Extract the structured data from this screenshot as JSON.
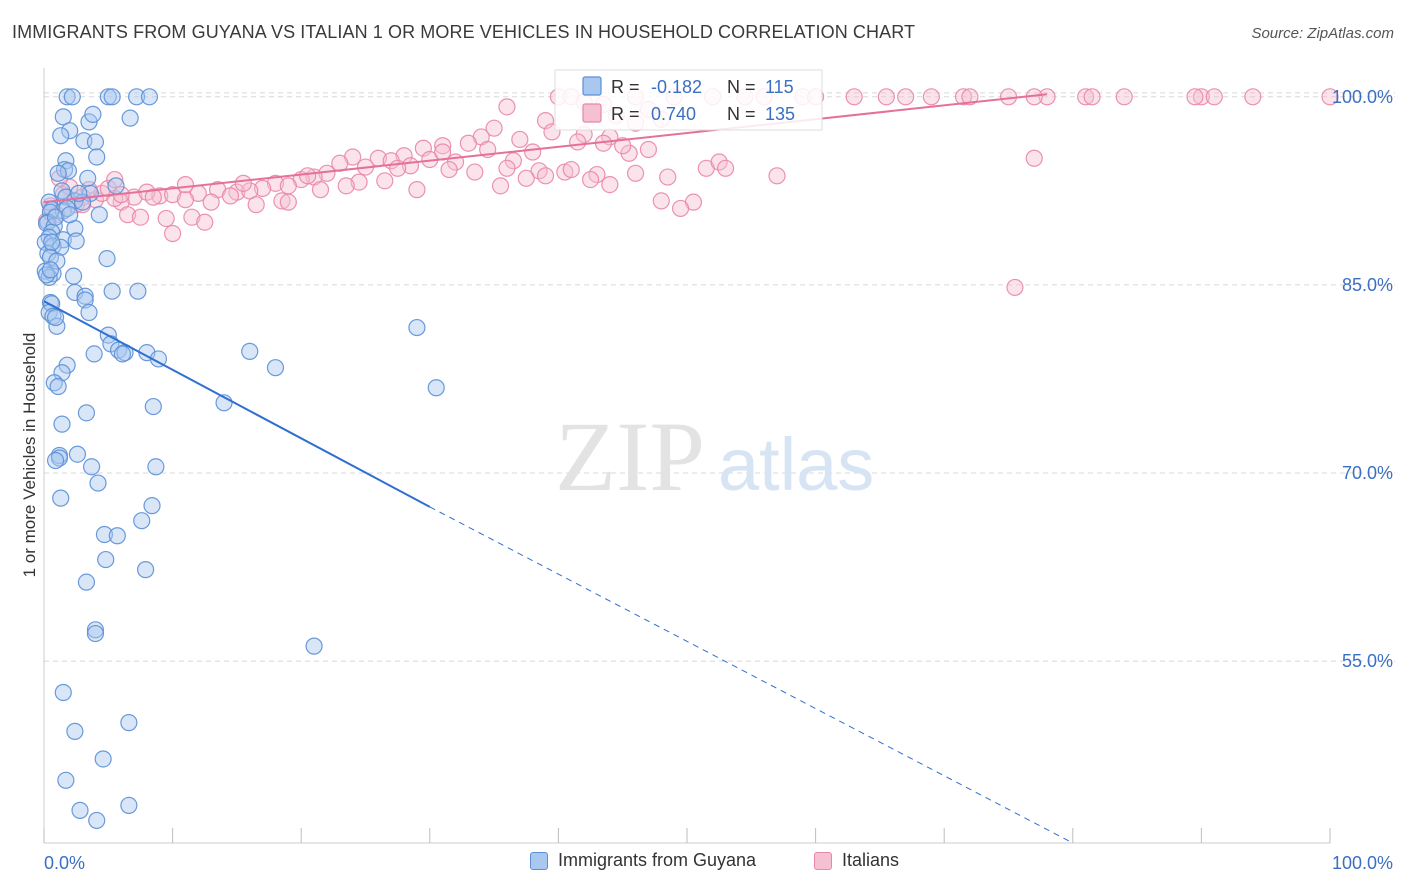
{
  "title": "IMMIGRANTS FROM GUYANA VS ITALIAN 1 OR MORE VEHICLES IN HOUSEHOLD CORRELATION CHART",
  "source": "Source: ZipAtlas.com",
  "watermark": {
    "zip": "ZIP",
    "atlas": "atlas"
  },
  "colors": {
    "blue": "#5b8fd6",
    "blue_fill": "#a9c8ef",
    "blue_line": "#2f6fd1",
    "pink": "#ea86a6",
    "pink_fill": "#f5c0d2",
    "pink_line": "#e5709a",
    "tick_text": "#3b6fc4",
    "grid": "#d8d8d8"
  },
  "legend_stats": [
    {
      "r_label": "R =",
      "r_value": "-0.182",
      "n_label": "N =",
      "n_value": "115"
    },
    {
      "r_label": "R =",
      "r_value": "0.740",
      "n_label": "N =",
      "n_value": "135"
    }
  ],
  "chart_data": {
    "type": "scatter",
    "title": "IMMIGRANTS FROM GUYANA VS ITALIAN 1 OR MORE VEHICLES IN HOUSEHOLD CORRELATION CHART",
    "xlabel": "",
    "ylabel": "1 or more Vehicles in Household",
    "xlim": [
      0,
      100
    ],
    "ylim": [
      40.5,
      101.5
    ],
    "x_tick_labels": [
      "0.0%",
      "100.0%"
    ],
    "y_ticks": [
      55,
      70,
      85,
      100
    ],
    "y_tick_labels": [
      "55.0%",
      "70.0%",
      "85.0%",
      "100.0%"
    ],
    "grid": true,
    "legend_position": "bottom",
    "series": [
      {
        "name": "Immigrants from Guyana",
        "color": "#5b8fd6",
        "trend": {
          "x": [
            0,
            30
          ],
          "y": [
            83.7,
            67.3
          ],
          "dashed_to": {
            "x": 80,
            "y": 40.5
          }
        },
        "points": [
          [
            1.8,
            100
          ],
          [
            2.2,
            100
          ],
          [
            5.0,
            100
          ],
          [
            5.3,
            100
          ],
          [
            7.2,
            100
          ],
          [
            8.2,
            100
          ],
          [
            1.5,
            98.4
          ],
          [
            3.5,
            98.0
          ],
          [
            3.8,
            98.6
          ],
          [
            6.7,
            98.3
          ],
          [
            2.0,
            97.3
          ],
          [
            1.3,
            96.9
          ],
          [
            3.1,
            96.5
          ],
          [
            4.0,
            96.4
          ],
          [
            4.1,
            95.2
          ],
          [
            1.7,
            94.9
          ],
          [
            1.6,
            94.2
          ],
          [
            1.9,
            94.1
          ],
          [
            1.1,
            93.9
          ],
          [
            3.4,
            93.5
          ],
          [
            5.6,
            92.9
          ],
          [
            1.4,
            92.5
          ],
          [
            3.6,
            92.3
          ],
          [
            1.7,
            92.0
          ],
          [
            2.4,
            91.7
          ],
          [
            0.4,
            91.6
          ],
          [
            0.6,
            91.0
          ],
          [
            1.5,
            90.9
          ],
          [
            4.3,
            90.6
          ],
          [
            0.5,
            90.8
          ],
          [
            0.3,
            90.0
          ],
          [
            0.2,
            89.9
          ],
          [
            0.8,
            89.7
          ],
          [
            2.4,
            89.5
          ],
          [
            0.6,
            89.2
          ],
          [
            0.4,
            88.8
          ],
          [
            1.5,
            88.6
          ],
          [
            0.1,
            88.4
          ],
          [
            0.7,
            88.1
          ],
          [
            1.3,
            88.0
          ],
          [
            0.3,
            87.5
          ],
          [
            0.5,
            87.2
          ],
          [
            4.9,
            87.1
          ],
          [
            0.1,
            86.1
          ],
          [
            0.7,
            85.9
          ],
          [
            2.3,
            85.7
          ],
          [
            0.4,
            85.6
          ],
          [
            2.4,
            84.4
          ],
          [
            3.2,
            84.1
          ],
          [
            5.3,
            84.5
          ],
          [
            7.3,
            84.5
          ],
          [
            0.5,
            83.6
          ],
          [
            0.6,
            83.5
          ],
          [
            3.2,
            83.8
          ],
          [
            0.4,
            82.8
          ],
          [
            0.7,
            82.5
          ],
          [
            3.5,
            82.8
          ],
          [
            1.0,
            81.7
          ],
          [
            5.0,
            81.0
          ],
          [
            29.0,
            81.6
          ],
          [
            5.2,
            80.3
          ],
          [
            5.8,
            79.8
          ],
          [
            6.3,
            79.6
          ],
          [
            8.0,
            79.6
          ],
          [
            3.9,
            79.5
          ],
          [
            6.1,
            79.5
          ],
          [
            16.0,
            79.7
          ],
          [
            8.9,
            79.1
          ],
          [
            18.0,
            78.4
          ],
          [
            1.8,
            78.6
          ],
          [
            1.4,
            78.0
          ],
          [
            0.8,
            77.2
          ],
          [
            1.1,
            76.9
          ],
          [
            30.5,
            76.8
          ],
          [
            14.0,
            75.6
          ],
          [
            8.5,
            75.3
          ],
          [
            3.3,
            74.8
          ],
          [
            1.4,
            73.9
          ],
          [
            1.2,
            71.4
          ],
          [
            2.6,
            71.5
          ],
          [
            1.2,
            71.2
          ],
          [
            0.9,
            71.0
          ],
          [
            3.7,
            70.5
          ],
          [
            8.7,
            70.5
          ],
          [
            4.2,
            69.2
          ],
          [
            1.3,
            68.0
          ],
          [
            8.4,
            67.4
          ],
          [
            7.6,
            66.2
          ],
          [
            4.7,
            65.1
          ],
          [
            5.7,
            65.0
          ],
          [
            4.8,
            63.1
          ],
          [
            7.9,
            62.3
          ],
          [
            3.3,
            61.3
          ],
          [
            4.0,
            57.5
          ],
          [
            4.0,
            57.2
          ],
          [
            21.0,
            56.2
          ],
          [
            1.5,
            52.5
          ],
          [
            2.4,
            49.4
          ],
          [
            6.6,
            50.1
          ],
          [
            4.6,
            47.2
          ],
          [
            1.7,
            45.5
          ],
          [
            2.8,
            43.1
          ],
          [
            6.6,
            43.5
          ],
          [
            4.1,
            42.3
          ],
          [
            3.0,
            91.6
          ],
          [
            2.7,
            92.3
          ],
          [
            1.8,
            91.1
          ],
          [
            0.9,
            90.4
          ],
          [
            1.0,
            86.9
          ],
          [
            0.2,
            85.8
          ],
          [
            0.6,
            88.4
          ],
          [
            2.0,
            90.6
          ],
          [
            0.9,
            82.4
          ],
          [
            2.5,
            88.5
          ],
          [
            0.5,
            86.2
          ]
        ]
      },
      {
        "name": "Italians",
        "color": "#ea86a6",
        "trend": {
          "x": [
            0,
            78
          ],
          "y": [
            91.6,
            100.2
          ]
        },
        "points": [
          [
            40,
            100
          ],
          [
            41,
            100
          ],
          [
            46,
            100
          ],
          [
            49,
            100
          ],
          [
            52,
            100
          ],
          [
            54.5,
            100
          ],
          [
            56,
            100
          ],
          [
            59,
            100
          ],
          [
            60,
            100
          ],
          [
            63,
            100
          ],
          [
            65.5,
            100
          ],
          [
            67,
            100
          ],
          [
            69,
            100
          ],
          [
            71.5,
            100
          ],
          [
            72,
            100
          ],
          [
            75,
            100
          ],
          [
            78,
            100
          ],
          [
            81,
            100
          ],
          [
            81.5,
            100
          ],
          [
            84,
            100
          ],
          [
            90,
            100
          ],
          [
            91,
            100
          ],
          [
            94,
            100
          ],
          [
            100,
            100
          ],
          [
            77,
            100
          ],
          [
            89.5,
            100
          ],
          [
            36,
            99.2
          ],
          [
            42,
            99.6
          ],
          [
            43.5,
            99.4
          ],
          [
            47,
            99.0
          ],
          [
            44.5,
            98.5
          ],
          [
            48,
            98.2
          ],
          [
            39,
            98.1
          ],
          [
            46,
            97.9
          ],
          [
            35,
            97.5
          ],
          [
            39.5,
            97.2
          ],
          [
            42,
            97.0
          ],
          [
            44,
            96.8
          ],
          [
            34,
            96.8
          ],
          [
            37,
            96.6
          ],
          [
            41.5,
            96.4
          ],
          [
            33,
            96.3
          ],
          [
            31,
            96.1
          ],
          [
            29.5,
            95.9
          ],
          [
            34.5,
            95.8
          ],
          [
            38,
            95.6
          ],
          [
            45.5,
            95.5
          ],
          [
            28,
            95.3
          ],
          [
            30,
            95.0
          ],
          [
            24,
            95.2
          ],
          [
            26,
            95.1
          ],
          [
            27,
            94.9
          ],
          [
            36.5,
            94.9
          ],
          [
            32,
            94.8
          ],
          [
            23,
            94.7
          ],
          [
            28.5,
            94.5
          ],
          [
            27.5,
            94.3
          ],
          [
            25,
            94.4
          ],
          [
            38.5,
            94.1
          ],
          [
            31.5,
            94.2
          ],
          [
            33.5,
            94.0
          ],
          [
            40.5,
            94.0
          ],
          [
            43,
            93.8
          ],
          [
            22,
            93.9
          ],
          [
            39,
            93.7
          ],
          [
            46,
            93.9
          ],
          [
            48.5,
            93.6
          ],
          [
            42.5,
            93.4
          ],
          [
            21,
            93.6
          ],
          [
            20,
            93.4
          ],
          [
            24.5,
            93.2
          ],
          [
            26.5,
            93.3
          ],
          [
            18,
            93.1
          ],
          [
            23.5,
            92.9
          ],
          [
            17,
            92.7
          ],
          [
            19,
            92.9
          ],
          [
            29,
            92.6
          ],
          [
            44,
            93.0
          ],
          [
            35.5,
            92.9
          ],
          [
            13.5,
            92.6
          ],
          [
            15,
            92.4
          ],
          [
            16,
            92.5
          ],
          [
            12,
            92.3
          ],
          [
            14.5,
            92.1
          ],
          [
            9,
            92.1
          ],
          [
            10,
            92.2
          ],
          [
            11,
            91.8
          ],
          [
            7,
            92.0
          ],
          [
            8,
            92.4
          ],
          [
            6,
            91.6
          ],
          [
            5.5,
            91.9
          ],
          [
            4,
            91.8
          ],
          [
            3,
            92.0
          ],
          [
            1.5,
            92.2
          ],
          [
            2.5,
            91.4
          ],
          [
            0.5,
            91.3
          ],
          [
            1,
            90.6
          ],
          [
            0.2,
            90.1
          ],
          [
            6.5,
            90.6
          ],
          [
            7.5,
            90.4
          ],
          [
            9.5,
            90.3
          ],
          [
            11.5,
            90.4
          ],
          [
            12.5,
            90.0
          ],
          [
            10,
            89.1
          ],
          [
            4.5,
            92.3
          ],
          [
            5,
            92.7
          ],
          [
            3.5,
            92.6
          ],
          [
            2,
            92.8
          ],
          [
            13,
            91.6
          ],
          [
            16.5,
            91.4
          ],
          [
            18.5,
            91.7
          ],
          [
            19,
            91.6
          ],
          [
            21.5,
            92.6
          ],
          [
            20.5,
            93.7
          ],
          [
            48,
            91.7
          ],
          [
            50.5,
            91.6
          ],
          [
            49.5,
            91.1
          ],
          [
            57,
            93.7
          ],
          [
            51.5,
            94.3
          ],
          [
            52.5,
            94.8
          ],
          [
            53,
            94.3
          ],
          [
            41,
            94.2
          ],
          [
            37.5,
            93.5
          ],
          [
            36,
            94.3
          ],
          [
            31,
            95.6
          ],
          [
            47,
            95.8
          ],
          [
            45,
            96.1
          ],
          [
            43.5,
            96.3
          ],
          [
            77,
            95.1
          ],
          [
            75.5,
            84.8
          ],
          [
            5.5,
            93.4
          ],
          [
            8.5,
            92.0
          ],
          [
            3,
            91.4
          ],
          [
            1.2,
            93.5
          ],
          [
            6,
            92.2
          ],
          [
            11,
            93.0
          ],
          [
            15.5,
            93.1
          ]
        ]
      }
    ]
  }
}
